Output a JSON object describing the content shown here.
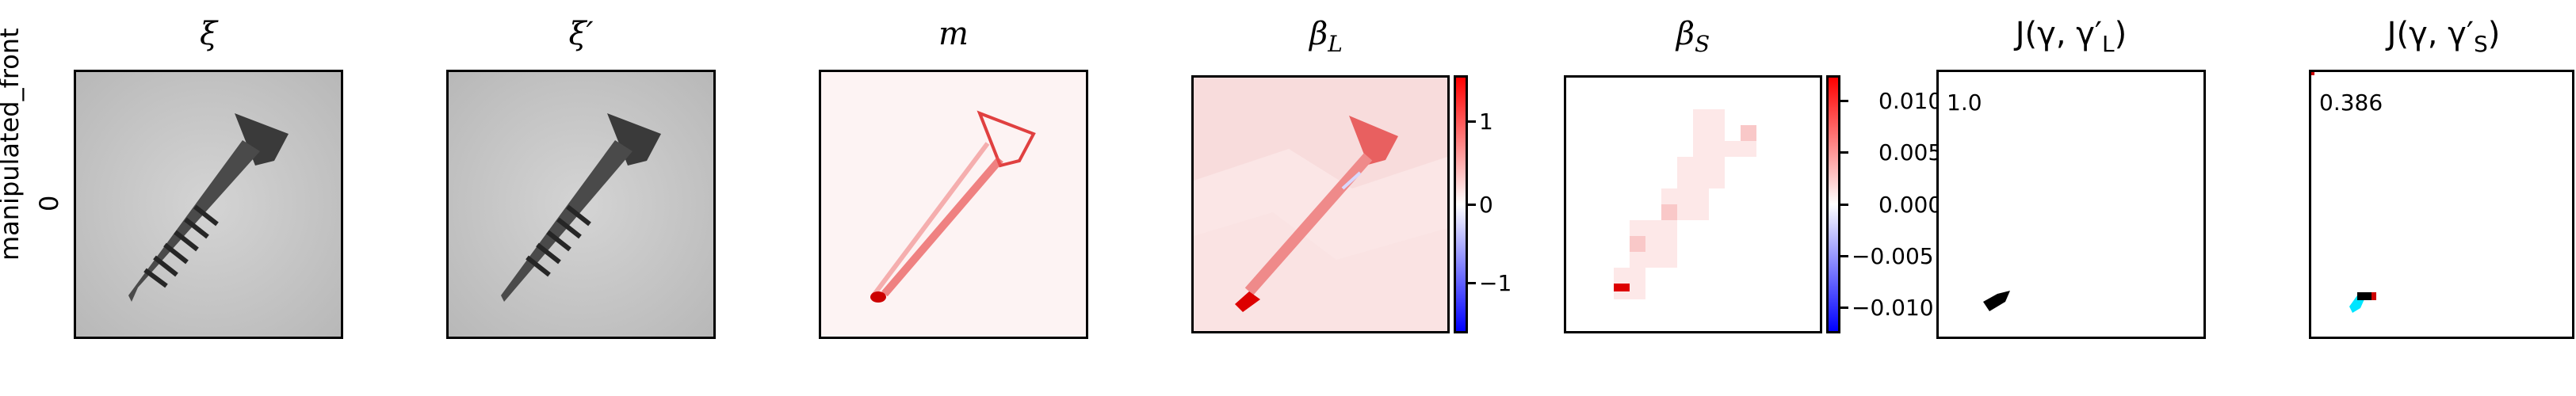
{
  "row_label": {
    "name": "manipulated_front",
    "index": "0"
  },
  "panels": {
    "xi": {
      "title": "ξ",
      "icon": "screw-photo"
    },
    "xi_prime": {
      "title": "ξ′",
      "icon": "screw-photo-manipulated"
    },
    "m": {
      "title": "m",
      "icon": "difference-map"
    },
    "beta_L": {
      "title": "β",
      "subscript": "L",
      "icon": "heatmap-large"
    },
    "beta_S": {
      "title": "β",
      "subscript": "S",
      "icon": "heatmap-small"
    },
    "J_L": {
      "title": "J(γ, γ′",
      "subscript": "L",
      "title_end": ")",
      "value": "1.0"
    },
    "J_S": {
      "title": "J(γ, γ′",
      "subscript": "S",
      "title_end": ")",
      "value": "0.386"
    }
  },
  "colorbars": {
    "beta_L": {
      "ticks": [
        "1",
        "0",
        "−1"
      ]
    },
    "beta_S": {
      "ticks": [
        "0.010",
        "0.005",
        "0.000",
        "−0.005",
        "−0.010"
      ]
    }
  },
  "colors": {
    "positive": "#ff0000",
    "zero": "#ffffff",
    "negative": "#0000ff",
    "overlap_black": "#000000",
    "overlap_cyan": "#00e5ff"
  }
}
